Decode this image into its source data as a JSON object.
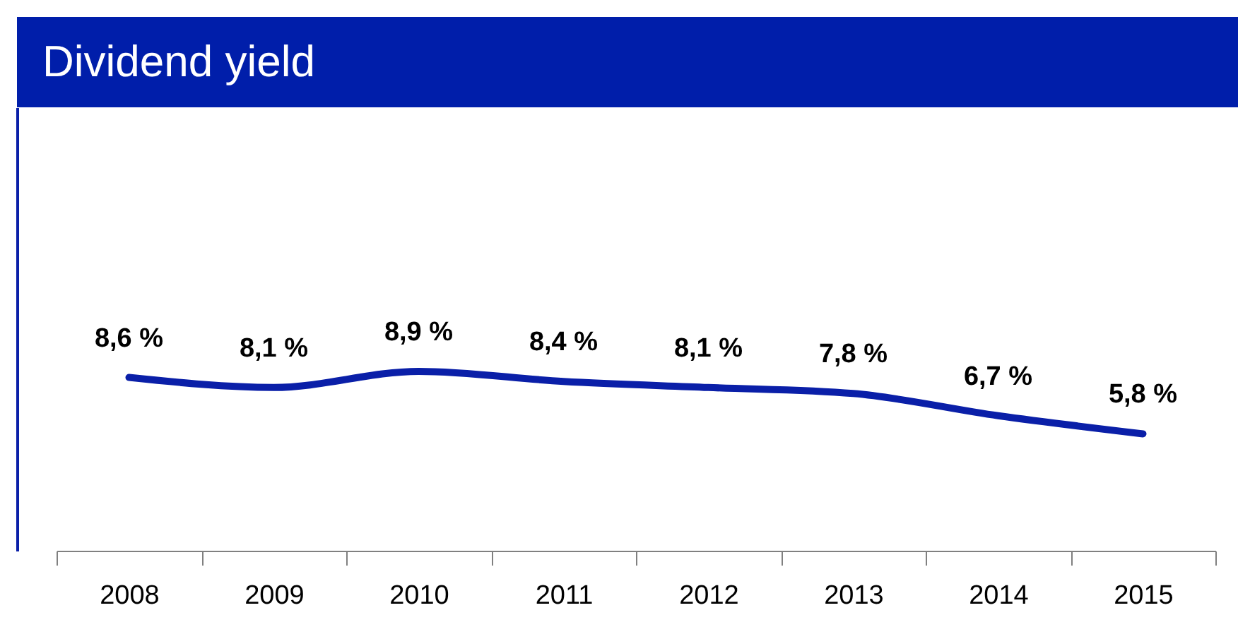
{
  "chart_data": {
    "type": "line",
    "title": "Dividend yield",
    "categories": [
      "2008",
      "2009",
      "2010",
      "2011",
      "2012",
      "2013",
      "2014",
      "2015"
    ],
    "series": [
      {
        "color": "#0a1fa8",
        "values": [
          8.6,
          8.1,
          8.9,
          8.4,
          8.1,
          7.8,
          6.7,
          5.8
        ],
        "value_labels": [
          "8,6 %",
          "8,1 %",
          "8,9 %",
          "8,4 %",
          "8,1 %",
          "7,8 %",
          "6,7 %",
          "5,8 %"
        ]
      }
    ],
    "ylim": [
      0,
      22
    ],
    "tick_labels": "x",
    "grid": false,
    "marker": "none",
    "line_style": "solid"
  }
}
